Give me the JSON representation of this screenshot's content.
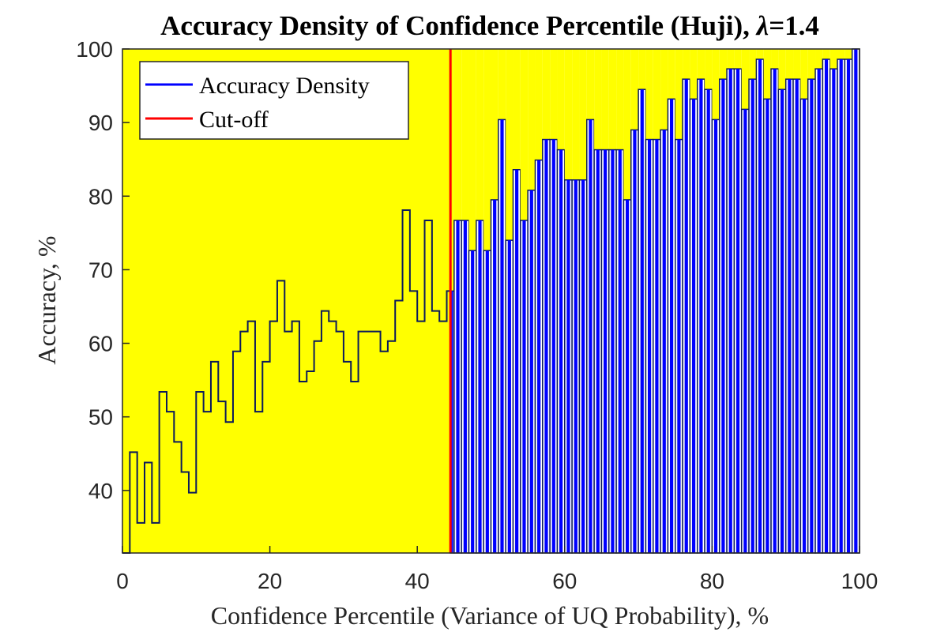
{
  "chart_data": {
    "type": "bar",
    "title_main": "Accuracy Density of Confidence Percentile (Huji), ",
    "title_lambda_symbol": "λ",
    "title_lambda_value": "=1.4",
    "xlabel": "Confidence Percentile (Variance of UQ Probability), %",
    "ylabel": "Accuracy, %",
    "xlim": [
      0,
      100
    ],
    "ylim": [
      31.5,
      100
    ],
    "xticks": [
      0,
      20,
      40,
      60,
      80,
      100
    ],
    "yticks": [
      40,
      50,
      60,
      70,
      80,
      90,
      100
    ],
    "bin_width": 1,
    "cutoff": 44.5,
    "legend_position": "top-left",
    "series": [
      {
        "name": "Accuracy Density",
        "color": "#0000ff"
      },
      {
        "name": "Cut-off",
        "color": "#ff0000"
      }
    ],
    "fill_color": "#ffff00",
    "outline_color": "#0b1a5c",
    "x_edges": [
      0,
      1,
      2,
      3,
      4,
      5,
      6,
      7,
      8,
      9,
      10,
      11,
      12,
      13,
      14,
      15,
      16,
      17,
      18,
      19,
      20,
      21,
      22,
      23,
      24,
      25,
      26,
      27,
      28,
      29,
      30,
      31,
      32,
      33,
      34,
      35,
      36,
      37,
      38,
      39,
      40,
      41,
      42,
      43,
      44,
      45,
      46,
      47,
      48,
      49,
      50,
      51,
      52,
      53,
      54,
      55,
      56,
      57,
      58,
      59,
      60,
      61,
      62,
      63,
      64,
      65,
      66,
      67,
      68,
      69,
      70,
      71,
      72,
      73,
      74,
      75,
      76,
      77,
      78,
      79,
      80,
      81,
      82,
      83,
      84,
      85,
      86,
      87,
      88,
      89,
      90,
      91,
      92,
      93,
      94,
      95,
      96,
      97,
      98,
      99,
      100
    ],
    "values": [
      31.5,
      45.2,
      35.6,
      43.8,
      35.6,
      53.4,
      50.7,
      46.6,
      42.5,
      39.7,
      53.4,
      50.7,
      57.5,
      52.1,
      49.3,
      58.9,
      61.6,
      63.0,
      50.7,
      57.5,
      63.0,
      68.5,
      61.6,
      63.0,
      54.8,
      56.2,
      60.3,
      64.4,
      63.0,
      61.6,
      57.5,
      54.8,
      61.6,
      61.6,
      61.6,
      58.9,
      60.3,
      65.8,
      78.1,
      67.1,
      63.0,
      76.7,
      64.4,
      63.0,
      67.1,
      76.7,
      76.7,
      72.6,
      76.7,
      72.6,
      79.5,
      90.4,
      74.0,
      83.6,
      76.7,
      80.8,
      84.9,
      87.7,
      87.7,
      86.3,
      82.2,
      82.2,
      82.2,
      90.4,
      86.3,
      86.3,
      86.3,
      86.3,
      79.5,
      89.0,
      94.5,
      87.7,
      87.7,
      89.0,
      93.2,
      87.7,
      95.9,
      93.2,
      95.9,
      94.5,
      90.4,
      95.9,
      97.3,
      97.3,
      91.8,
      95.9,
      98.6,
      93.2,
      97.3,
      94.5,
      95.9,
      95.9,
      93.2,
      95.9,
      97.3,
      98.6,
      97.3,
      98.6,
      98.6,
      100,
      100
    ]
  }
}
